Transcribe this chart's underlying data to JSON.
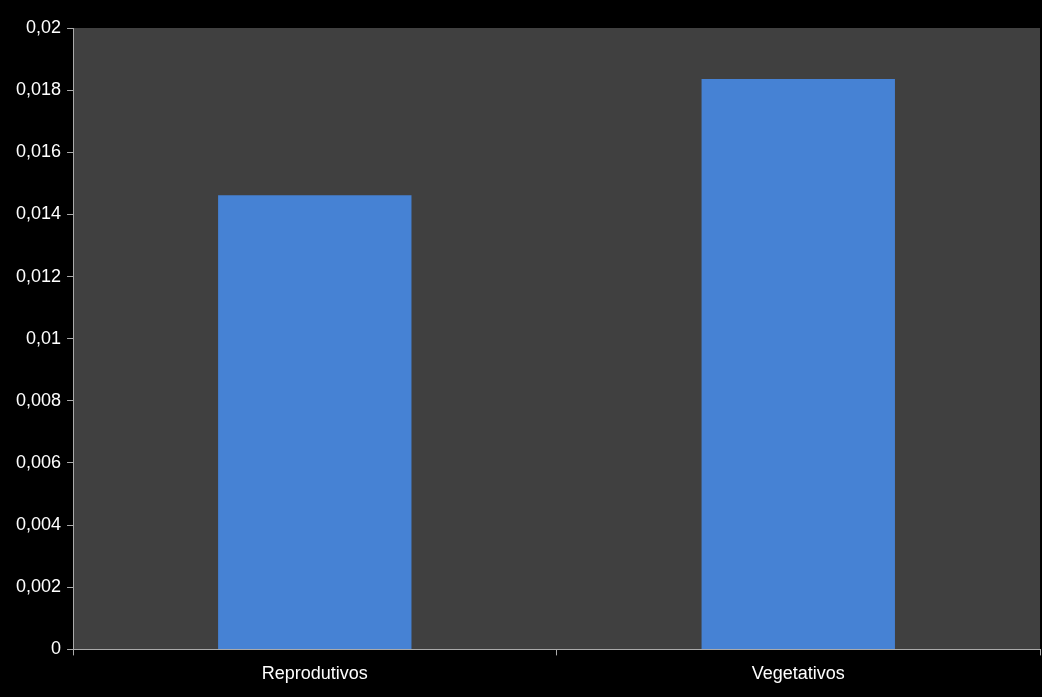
{
  "chart_data": {
    "type": "bar",
    "categories": [
      "Reprodutivos",
      "Vegetativos"
    ],
    "values": [
      0.01462,
      0.01836
    ],
    "color": "#4682d4",
    "ylim": [
      0,
      0.02
    ],
    "yticks": [
      {
        "value": 0,
        "label": "0"
      },
      {
        "value": 0.002,
        "label": "0,002"
      },
      {
        "value": 0.004,
        "label": "0,004"
      },
      {
        "value": 0.006,
        "label": "0,006"
      },
      {
        "value": 0.008,
        "label": "0,008"
      },
      {
        "value": 0.01,
        "label": "0,01"
      },
      {
        "value": 0.012,
        "label": "0,012"
      },
      {
        "value": 0.014,
        "label": "0,014"
      },
      {
        "value": 0.016,
        "label": "0,016"
      },
      {
        "value": 0.018,
        "label": "0,018"
      },
      {
        "value": 0.02,
        "label": "0,02"
      }
    ],
    "grid": false,
    "legend": false
  }
}
